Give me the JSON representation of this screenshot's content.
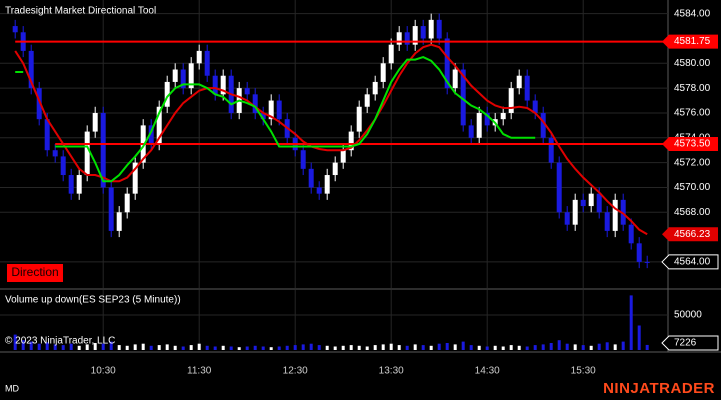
{
  "copyright": "© 2023 NinjaTrader, LLC",
  "status": "MD",
  "brand": "NINJATRADER",
  "chart_data": [
    {
      "type": "candlestick",
      "title": "Tradesight Market Directional Tool",
      "annotation": "Direction",
      "xlim": [
        -1.9,
        81.6
      ],
      "xticks": [
        {
          "value": 11,
          "label": "10:30"
        },
        {
          "value": 23,
          "label": "11:30"
        },
        {
          "value": 35,
          "label": "12:30"
        },
        {
          "value": 47,
          "label": "13:30"
        },
        {
          "value": 59,
          "label": "14:30"
        },
        {
          "value": 71,
          "label": "15:30"
        }
      ],
      "ylim": [
        4561.9,
        4585.1
      ],
      "yticks": [
        {
          "value": 4564,
          "label": "4564.00"
        },
        {
          "value": 4568,
          "label": "4568.00"
        },
        {
          "value": 4570,
          "label": "4570.00"
        },
        {
          "value": 4572,
          "label": "4572.00"
        },
        {
          "value": 4574,
          "label": "4574.00"
        },
        {
          "value": 4576,
          "label": "4576.00"
        },
        {
          "value": 4578,
          "label": "4578.00"
        },
        {
          "value": 4580,
          "label": "4580.00"
        },
        {
          "value": 4584,
          "label": "4584.00"
        }
      ],
      "grid": true,
      "up_color": "#ffffff",
      "down_color": "#1a1ae0",
      "open": [
        4583,
        4582.5,
        4581,
        4578,
        4575.5,
        4573,
        4572.5,
        4571,
        4569.5,
        4571,
        4574.5,
        4576,
        4570,
        4566.5,
        4568,
        4569.5,
        4572,
        4575,
        4573.5,
        4576.5,
        4578.5,
        4579.5,
        4578,
        4580,
        4581,
        4579,
        4577.5,
        4579,
        4576,
        4578,
        4577.5,
        4576,
        4575.5,
        4577,
        4575.5,
        4574,
        4573,
        4571.5,
        4570,
        4569.5,
        4571,
        4572,
        4573,
        4574.5,
        4576.5,
        4577.5,
        4578.5,
        4580,
        4581.5,
        4582.5,
        4581.5,
        4583,
        4582,
        4583.5,
        4582,
        4578,
        4579.5,
        4575,
        4574,
        4576,
        4575,
        4575.5,
        4576,
        4578,
        4579,
        4577,
        4576,
        4574,
        4572,
        4568,
        4567,
        4569,
        4568.5,
        4569.5,
        4568,
        4566.5,
        4569,
        4567,
        4565.5,
        4564
      ],
      "high": [
        4583.5,
        4583,
        4581.5,
        4578.5,
        4576,
        4573.5,
        4573,
        4571.5,
        4571.5,
        4575,
        4576.5,
        4576.5,
        4570.5,
        4568.5,
        4570,
        4572.5,
        4575.5,
        4575.5,
        4577,
        4579,
        4580,
        4580,
        4580.5,
        4581.5,
        4581.5,
        4579.5,
        4579.5,
        4579.5,
        4578.5,
        4578.5,
        4578,
        4576.5,
        4577.5,
        4577.5,
        4576,
        4574.5,
        4573.5,
        4572,
        4570.5,
        4571.5,
        4572.5,
        4573.5,
        4575,
        4577,
        4578,
        4579,
        4580.5,
        4582,
        4583,
        4583,
        4583.5,
        4583.5,
        4584,
        4584,
        4582.5,
        4580,
        4580,
        4575.5,
        4576.5,
        4576.5,
        4576,
        4576.5,
        4578.5,
        4579.5,
        4579.5,
        4577.5,
        4576.5,
        4574.5,
        4572.5,
        4568.5,
        4569.5,
        4569.5,
        4570,
        4570,
        4568.5,
        4569.5,
        4569.5,
        4567.5,
        4566,
        4564.5
      ],
      "low": [
        4582,
        4580.5,
        4577.5,
        4575,
        4572.5,
        4572,
        4570.5,
        4569,
        4569,
        4570.5,
        4574,
        4569.5,
        4566,
        4566,
        4567.5,
        4569,
        4571.5,
        4573,
        4573,
        4576,
        4578,
        4577.5,
        4577.5,
        4579.5,
        4578.5,
        4577,
        4577,
        4575.5,
        4575.5,
        4577,
        4575.5,
        4575,
        4575,
        4575,
        4573.5,
        4572.5,
        4571,
        4569.5,
        4569,
        4569,
        4570.5,
        4571.5,
        4572.5,
        4574,
        4576,
        4577,
        4578,
        4579.5,
        4581,
        4581,
        4581,
        4581.5,
        4581.5,
        4581.5,
        4577.5,
        4577.5,
        4574.5,
        4573.5,
        4573.5,
        4574.5,
        4574.5,
        4575,
        4575.5,
        4577.5,
        4576.5,
        4575.5,
        4573.5,
        4571.5,
        4567.5,
        4566.5,
        4566.5,
        4568,
        4568,
        4567.5,
        4566,
        4566,
        4566.5,
        4565,
        4563.5,
        4563.5
      ],
      "close": [
        4582.5,
        4581,
        4578,
        4575.5,
        4573,
        4572.5,
        4571,
        4569.5,
        4571,
        4574.5,
        4576,
        4570,
        4566.5,
        4568,
        4569.5,
        4572,
        4575,
        4573.5,
        4576.5,
        4578.5,
        4579.5,
        4578,
        4580,
        4581,
        4579,
        4577.5,
        4579,
        4576,
        4578,
        4577.5,
        4576,
        4575.5,
        4577,
        4575.5,
        4574,
        4573,
        4571.5,
        4570,
        4569.5,
        4571,
        4572,
        4573,
        4574.5,
        4576.5,
        4577.5,
        4578.5,
        4580,
        4581.5,
        4582.5,
        4581.5,
        4583,
        4582,
        4583.5,
        4582,
        4578,
        4579.5,
        4575,
        4574,
        4576,
        4575,
        4575.5,
        4576,
        4578,
        4579,
        4577,
        4576,
        4574,
        4572,
        4568,
        4567,
        4569,
        4568.5,
        4569.5,
        4568,
        4566.5,
        4569,
        4567,
        4565.5,
        4564,
        4564
      ],
      "lines": [
        {
          "color": "#e00000",
          "values": [
            4581,
            4580,
            4578.5,
            4577,
            4575.5,
            4574.5,
            4573.5,
            4572.5,
            4571.5,
            4571,
            4571,
            4570.8,
            4570.5,
            4570.5,
            4570.8,
            4571.5,
            4572.3,
            4573,
            4574,
            4575,
            4576,
            4576.8,
            4577.3,
            4577.8,
            4578,
            4578,
            4577.8,
            4577.5,
            4577.3,
            4577,
            4576.5,
            4576,
            4575.7,
            4575.3,
            4574.8,
            4574.3,
            4573.7,
            4573.3,
            4573.1,
            4573,
            4573,
            4573,
            4573.2,
            4573.8,
            4574.6,
            4575.5,
            4576.6,
            4577.8,
            4579,
            4580,
            4580.8,
            4581.3,
            4581.5,
            4581.3,
            4580.5,
            4579.8,
            4579,
            4578.2,
            4577.6,
            4577,
            4576.6,
            4576.4,
            4576.4,
            4576.5,
            4576.4,
            4576,
            4575.3,
            4574.4,
            4573.3,
            4572.3,
            4571.5,
            4570.8,
            4570.2,
            4569.6,
            4568.9,
            4568.3,
            4567.9,
            4567.3,
            4566.6,
            4566.23
          ]
        },
        {
          "color": "#00e000",
          "values": [
            4579.3,
            4579.3,
            null,
            null,
            null,
            4573.3,
            4573.3,
            4573.3,
            4573.3,
            4573.3,
            4572,
            4570.5,
            4570.5,
            4571,
            4571.8,
            4572.5,
            4573.3,
            4574.5,
            4576,
            4577.3,
            4578,
            4578.3,
            4578.3,
            4578.3,
            4578,
            4577.5,
            4577.3,
            4576.7,
            4577,
            4576.8,
            4576.5,
            4575.5,
            4574.5,
            4573.3,
            4573.3,
            4573.3,
            4573.3,
            4573.3,
            4573.3,
            4573.3,
            4573.3,
            4573.3,
            4573.3,
            4573.5,
            4574.3,
            4575.5,
            4577,
            4578.5,
            4579.5,
            4580.3,
            4580.3,
            4580.5,
            4580.2,
            4579.5,
            4578.5,
            4577.6,
            4577.1,
            4576.6,
            4576.3,
            4575.8,
            4575.2,
            4574.3,
            4574,
            4574,
            4574,
            4574,
            null,
            null,
            null,
            null,
            null,
            null,
            null,
            null,
            null,
            null,
            null,
            null,
            null,
            null
          ]
        }
      ],
      "levels": [
        {
          "value": 4581.75,
          "label": "4581.75"
        },
        {
          "value": 4573.5,
          "label": "4573.50"
        }
      ],
      "level_color": "#ff0000",
      "current": {
        "value": 4564,
        "label": "4564.00"
      }
    },
    {
      "type": "bar",
      "title": "Volume up down(ES SEP23 (5 Minute))",
      "ylim": [
        0,
        85700
      ],
      "yticks": [
        50000
      ],
      "values": [
        22000,
        14000,
        12000,
        9000,
        11000,
        8000,
        7000,
        9000,
        6000,
        8000,
        10000,
        9000,
        12000,
        7000,
        6000,
        8000,
        9000,
        6000,
        7000,
        8000,
        6000,
        5000,
        7000,
        9000,
        6000,
        5000,
        6000,
        5000,
        4000,
        5000,
        6000,
        5000,
        4000,
        5000,
        6000,
        7000,
        8000,
        9000,
        7000,
        6000,
        5000,
        6000,
        7000,
        6000,
        5000,
        7000,
        8000,
        9000,
        7000,
        6000,
        8000,
        7000,
        6000,
        9000,
        10000,
        8000,
        12000,
        7000,
        6000,
        5000,
        6000,
        5000,
        7000,
        6000,
        5000,
        7000,
        8000,
        10000,
        14000,
        9000,
        8000,
        7000,
        6000,
        9000,
        11000,
        8000,
        12000,
        78000,
        35000,
        7226
      ]
    }
  ]
}
